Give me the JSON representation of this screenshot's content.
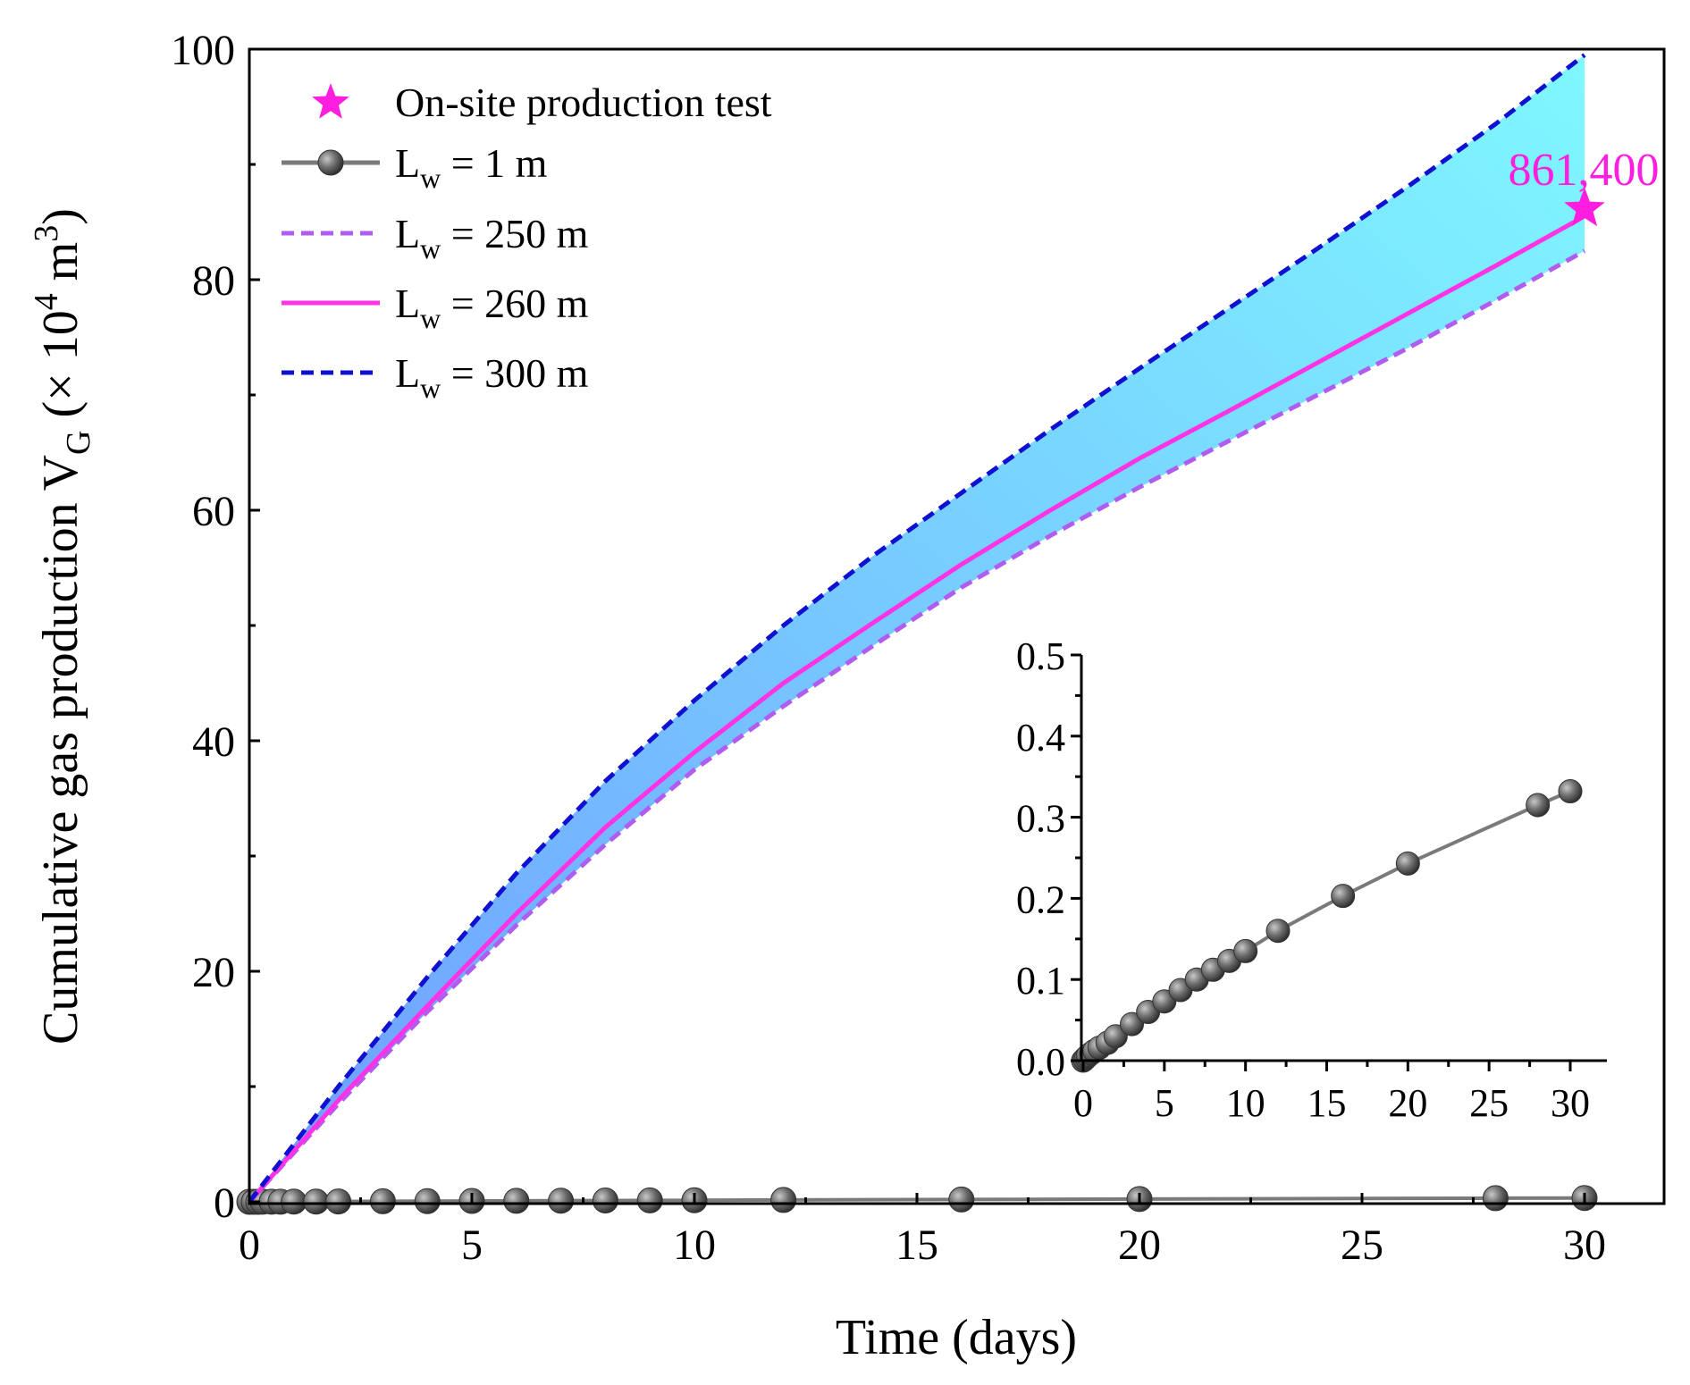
{
  "chart_data": [
    {
      "type": "line",
      "ylabel_main": "Cumulative gas production V",
      "ylabel_sub": "G",
      "ylabel_unit_open": " (× 10",
      "ylabel_unit_exp": "4",
      "ylabel_unit_m": " m",
      "ylabel_unit_exp2": "3",
      "ylabel_unit_close": ")",
      "xlabel": "Time (days)",
      "xlim": [
        0,
        32
      ],
      "ylim": [
        0,
        100
      ],
      "xticks": [
        0,
        5,
        10,
        15,
        20,
        25,
        30
      ],
      "yticks": [
        0,
        20,
        40,
        60,
        80,
        100
      ],
      "grid": false,
      "legend_position": "top-left",
      "fill_between": {
        "lower": "Lw = 250 m",
        "upper": "Lw = 300 m",
        "colors": [
          "#6f9cff",
          "#7ff8ff"
        ]
      },
      "series": [
        {
          "legend_main": "L",
          "legend_sub": "w",
          "legend_rest": " = 1   m",
          "style": "solid-markers",
          "color": "#7a7a7a",
          "x": [
            0,
            0.1,
            0.2,
            0.3,
            0.5,
            0.7,
            1,
            1.5,
            2,
            3,
            4,
            5,
            6,
            7,
            8,
            9,
            10,
            12,
            16,
            20,
            28,
            30
          ],
          "y": [
            0,
            0.002,
            0.004,
            0.006,
            0.009,
            0.012,
            0.016,
            0.022,
            0.03,
            0.045,
            0.06,
            0.073,
            0.087,
            0.1,
            0.112,
            0.123,
            0.135,
            0.16,
            0.203,
            0.243,
            0.315,
            0.332
          ]
        },
        {
          "legend_main": "L",
          "legend_sub": "w",
          "legend_rest": " = 250 m",
          "style": "dashed",
          "color": "#b05cf0",
          "x": [
            0,
            2,
            4,
            6,
            8,
            10,
            12,
            14,
            16,
            18,
            20,
            22,
            24,
            26,
            28,
            30
          ],
          "y": [
            0,
            8.5,
            16.5,
            24,
            31,
            37.5,
            43,
            48.2,
            53.3,
            57.8,
            62,
            66,
            70,
            74,
            78.2,
            82.5
          ]
        },
        {
          "legend_main": "L",
          "legend_sub": "w",
          "legend_rest": " = 260 m",
          "style": "solid",
          "color": "#ff33e6",
          "x": [
            0,
            2,
            4,
            6,
            8,
            10,
            12,
            14,
            16,
            18,
            20,
            22,
            24,
            26,
            28,
            30
          ],
          "y": [
            0,
            8.8,
            17,
            25,
            32.5,
            39,
            45,
            50.2,
            55.3,
            60,
            64.5,
            68.6,
            72.8,
            77,
            81.2,
            85.5
          ]
        },
        {
          "legend_main": "L",
          "legend_sub": "w",
          "legend_rest": " = 300 m",
          "style": "dashed",
          "color": "#1010d0",
          "x": [
            0,
            2,
            4,
            6,
            8,
            10,
            12,
            14,
            16,
            18,
            20,
            22,
            24,
            26,
            28,
            30
          ],
          "y": [
            0,
            10,
            19.5,
            28.5,
            36.5,
            43.5,
            50,
            56,
            61.5,
            67,
            72.3,
            77.5,
            82.7,
            88,
            93.5,
            99.5
          ]
        }
      ],
      "markers": [
        {
          "legend": "On-site production test",
          "shape": "star",
          "color": "#ff1ee0",
          "x": 30,
          "y": 86.14,
          "annotation": "861,400"
        }
      ]
    },
    {
      "type": "line",
      "role": "inset",
      "xlim": [
        0,
        32
      ],
      "ylim": [
        0,
        0.5
      ],
      "xticks": [
        0,
        5,
        10,
        15,
        20,
        25,
        30
      ],
      "yticks": [
        "0.0",
        "0.1",
        "0.2",
        "0.3",
        "0.4",
        "0.5"
      ],
      "series_ref": "Lw = 1   m"
    }
  ]
}
